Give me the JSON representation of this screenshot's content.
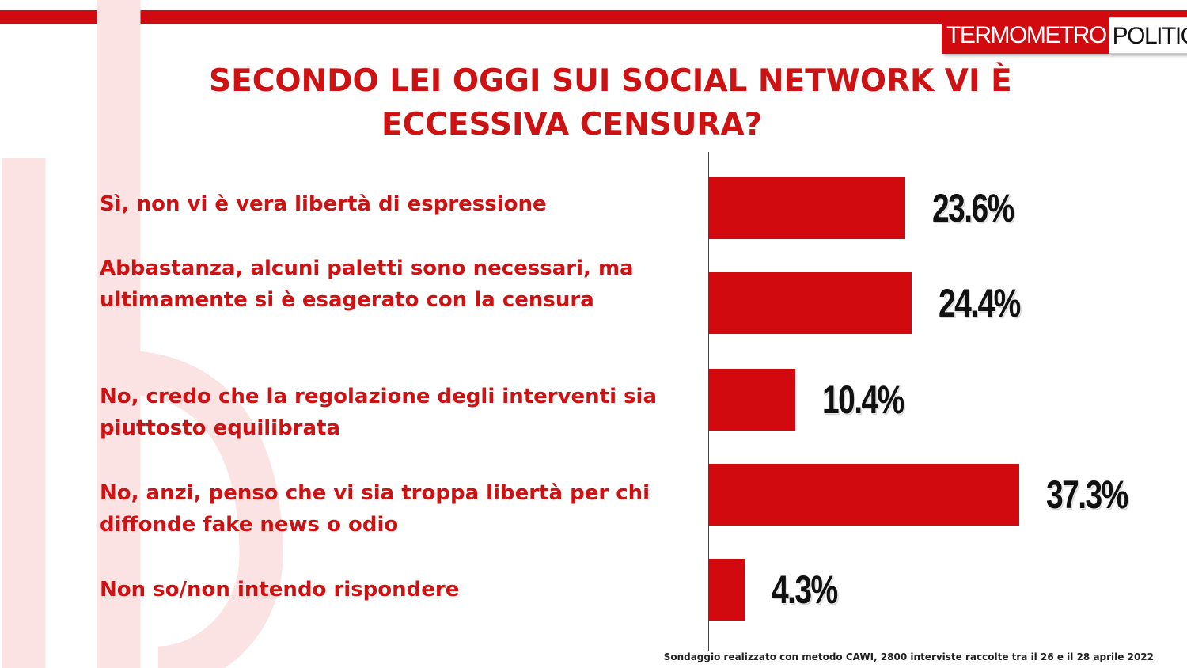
{
  "brand": {
    "left": "TERMOMETRO",
    "right": "POLITICO"
  },
  "colors": {
    "accent": "#d10a10",
    "text": "#cc1212",
    "value_text": "#111111"
  },
  "title_lines": [
    "SECONDO LEI OGGI SUI SOCIAL NETWORK VI È",
    "ECCESSIVA CENSURA?"
  ],
  "chart_data": {
    "type": "bar",
    "orientation": "horizontal",
    "title": "SECONDO LEI OGGI SUI SOCIAL NETWORK VI È ECCESSIVA CENSURA?",
    "categories": [
      "Sì, non vi è vera libertà  di espressione",
      "Abbastanza, alcuni paletti sono necessari, ma ultimamente si è esagerato con la censura",
      "No, credo che la regolazione degli interventi sia piuttosto equilibrata",
      "No, anzi, penso che vi sia troppa libertà  per chi diffonde fake news o odio",
      "Non so/non intendo rispondere"
    ],
    "values": [
      23.6,
      24.4,
      10.4,
      37.3,
      4.3
    ],
    "value_labels": [
      "23.6%",
      "24.4%",
      "10.4%",
      "37.3%",
      "4.3%"
    ],
    "unit": "%",
    "grid": false,
    "legend": "none"
  },
  "footnote": "Sondaggio realizzato con metodo CAWI, 2800 interviste raccolte tra il 26 e il 28 aprile 2022"
}
